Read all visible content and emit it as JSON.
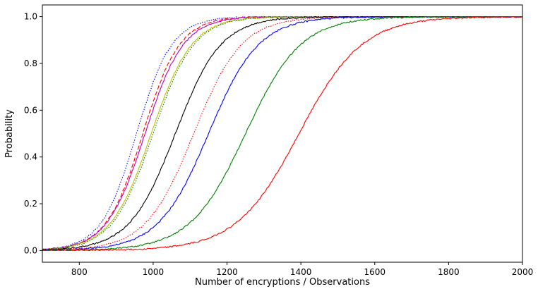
{
  "chart_data": {
    "type": "line",
    "title": "",
    "xlabel": "Number of encryptions / Observations",
    "ylabel": "Probability",
    "xlim": [
      700,
      2000
    ],
    "ylim": [
      -0.05,
      1.05
    ],
    "xticks": [
      800,
      1000,
      1200,
      1400,
      1600,
      1800,
      2000
    ],
    "xtick_labels": [
      "800",
      "1000",
      "1200",
      "1400",
      "1600",
      "1800",
      "2000"
    ],
    "yticks": [
      0.0,
      0.2,
      0.4,
      0.6,
      0.8,
      1.0
    ],
    "ytick_labels": [
      "0.0",
      "0.2",
      "0.4",
      "0.6",
      "0.8",
      "1.0"
    ],
    "grid": false,
    "legend": "none",
    "series": [
      {
        "color": "#0000ff",
        "style": "dotted",
        "mu": 955,
        "s": 48,
        "points": [
          [
            700,
            0.005
          ],
          [
            800,
            0.04
          ],
          [
            850,
            0.1
          ],
          [
            900,
            0.24
          ],
          [
            950,
            0.48
          ],
          [
            1000,
            0.7
          ],
          [
            1050,
            0.87
          ],
          [
            1100,
            0.94
          ],
          [
            1150,
            0.98
          ],
          [
            1200,
            0.993
          ],
          [
            1300,
            1.0
          ],
          [
            2000,
            1.0
          ]
        ]
      },
      {
        "color": "#ff0000",
        "style": "dashed",
        "mu": 972,
        "s": 50,
        "points": [
          [
            700,
            0.005
          ],
          [
            800,
            0.035
          ],
          [
            850,
            0.09
          ],
          [
            900,
            0.2
          ],
          [
            950,
            0.4
          ],
          [
            1000,
            0.62
          ],
          [
            1050,
            0.81
          ],
          [
            1100,
            0.91
          ],
          [
            1150,
            0.96
          ],
          [
            1200,
            0.985
          ],
          [
            1300,
            0.998
          ],
          [
            2000,
            1.0
          ]
        ]
      },
      {
        "color": "#bf00bf",
        "style": "solid",
        "mu": 978,
        "s": 52,
        "points": [
          [
            700,
            0.005
          ],
          [
            800,
            0.03
          ],
          [
            850,
            0.08
          ],
          [
            900,
            0.19
          ],
          [
            950,
            0.38
          ],
          [
            1000,
            0.6
          ],
          [
            1050,
            0.79
          ],
          [
            1100,
            0.9
          ],
          [
            1150,
            0.96
          ],
          [
            1200,
            0.985
          ],
          [
            1300,
            0.998
          ],
          [
            2000,
            1.0
          ]
        ]
      },
      {
        "color": "#bfbf00",
        "style": "solid",
        "mu": 995,
        "s": 55,
        "points": [
          [
            700,
            0.004
          ],
          [
            800,
            0.025
          ],
          [
            850,
            0.06
          ],
          [
            900,
            0.15
          ],
          [
            950,
            0.31
          ],
          [
            1000,
            0.51
          ],
          [
            1050,
            0.7
          ],
          [
            1100,
            0.84
          ],
          [
            1150,
            0.92
          ],
          [
            1200,
            0.96
          ],
          [
            1300,
            0.99
          ],
          [
            2000,
            1.0
          ]
        ]
      },
      {
        "color": "#008000",
        "style": "dotted",
        "mu": 1000,
        "s": 55,
        "points": [
          [
            700,
            0.003
          ],
          [
            800,
            0.02
          ],
          [
            850,
            0.05
          ],
          [
            900,
            0.13
          ],
          [
            950,
            0.29
          ],
          [
            1000,
            0.49
          ],
          [
            1050,
            0.69
          ],
          [
            1100,
            0.83
          ],
          [
            1150,
            0.92
          ],
          [
            1200,
            0.96
          ],
          [
            1300,
            0.99
          ],
          [
            2000,
            1.0
          ]
        ]
      },
      {
        "color": "#000000",
        "style": "solid",
        "mu": 1060,
        "s": 62,
        "points": [
          [
            700,
            0.003
          ],
          [
            800,
            0.015
          ],
          [
            850,
            0.035
          ],
          [
            900,
            0.08
          ],
          [
            950,
            0.15
          ],
          [
            1000,
            0.27
          ],
          [
            1050,
            0.42
          ],
          [
            1100,
            0.59
          ],
          [
            1150,
            0.74
          ],
          [
            1200,
            0.85
          ],
          [
            1250,
            0.92
          ],
          [
            1300,
            0.96
          ],
          [
            1400,
            0.99
          ],
          [
            2000,
            1.0
          ]
        ]
      },
      {
        "color": "#ff0000",
        "style": "dotted",
        "mu": 1110,
        "s": 65,
        "points": [
          [
            700,
            0.002
          ],
          [
            800,
            0.008
          ],
          [
            900,
            0.045
          ],
          [
            950,
            0.09
          ],
          [
            1000,
            0.15
          ],
          [
            1050,
            0.24
          ],
          [
            1100,
            0.36
          ],
          [
            1150,
            0.52
          ],
          [
            1200,
            0.66
          ],
          [
            1250,
            0.79
          ],
          [
            1300,
            0.88
          ],
          [
            1400,
            0.96
          ],
          [
            1500,
            0.99
          ],
          [
            2000,
            1.0
          ]
        ]
      },
      {
        "color": "#0000ff",
        "style": "solid",
        "mu": 1150,
        "s": 68,
        "points": [
          [
            700,
            0.002
          ],
          [
            800,
            0.006
          ],
          [
            900,
            0.025
          ],
          [
            950,
            0.05
          ],
          [
            1000,
            0.1
          ],
          [
            1050,
            0.18
          ],
          [
            1100,
            0.28
          ],
          [
            1150,
            0.42
          ],
          [
            1200,
            0.57
          ],
          [
            1250,
            0.71
          ],
          [
            1300,
            0.82
          ],
          [
            1400,
            0.94
          ],
          [
            1500,
            0.98
          ],
          [
            1600,
            0.995
          ],
          [
            2000,
            1.0
          ]
        ]
      },
      {
        "color": "#008000",
        "style": "solid",
        "mu": 1250,
        "s": 75,
        "points": [
          [
            700,
            0.0
          ],
          [
            800,
            0.003
          ],
          [
            900,
            0.01
          ],
          [
            1000,
            0.05
          ],
          [
            1050,
            0.09
          ],
          [
            1100,
            0.15
          ],
          [
            1150,
            0.23
          ],
          [
            1200,
            0.35
          ],
          [
            1250,
            0.5
          ],
          [
            1300,
            0.64
          ],
          [
            1350,
            0.76
          ],
          [
            1400,
            0.85
          ],
          [
            1500,
            0.94
          ],
          [
            1600,
            0.98
          ],
          [
            1700,
            0.995
          ],
          [
            2000,
            1.0
          ]
        ]
      },
      {
        "color": "#ff0000",
        "style": "solid",
        "mu": 1395,
        "s": 85,
        "points": [
          [
            700,
            0.0
          ],
          [
            900,
            0.002
          ],
          [
            1000,
            0.015
          ],
          [
            1050,
            0.025
          ],
          [
            1100,
            0.05
          ],
          [
            1150,
            0.08
          ],
          [
            1200,
            0.13
          ],
          [
            1250,
            0.2
          ],
          [
            1300,
            0.28
          ],
          [
            1350,
            0.39
          ],
          [
            1400,
            0.51
          ],
          [
            1450,
            0.63
          ],
          [
            1500,
            0.74
          ],
          [
            1550,
            0.82
          ],
          [
            1600,
            0.88
          ],
          [
            1700,
            0.95
          ],
          [
            1800,
            0.98
          ],
          [
            1900,
            0.99
          ],
          [
            2000,
            0.997
          ]
        ]
      }
    ]
  }
}
